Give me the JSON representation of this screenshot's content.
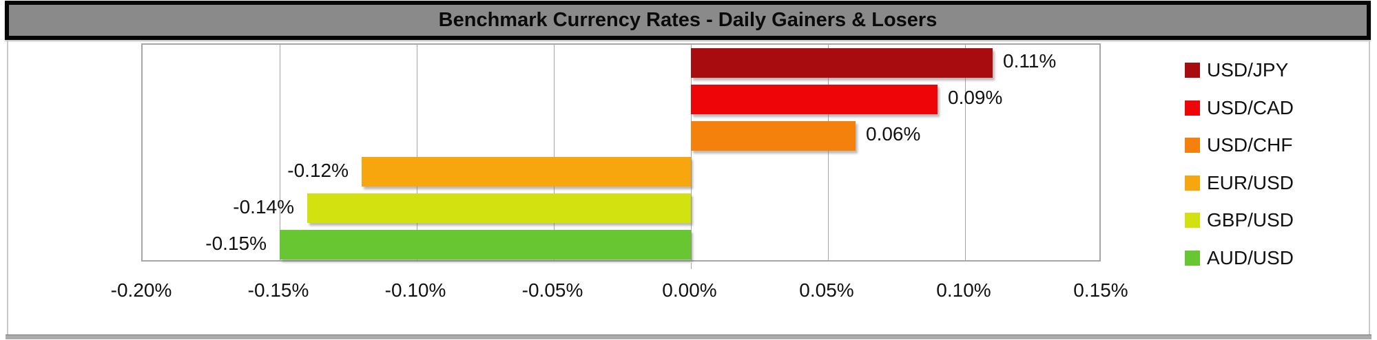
{
  "chart": {
    "title": "Benchmark Currency Rates - Daily Gainers & Losers"
  },
  "chart_data": {
    "type": "bar",
    "orientation": "horizontal",
    "title": "Benchmark Currency Rates - Daily Gainers & Losers",
    "series": [
      {
        "name": "USD/JPY",
        "value": 0.11,
        "label": "0.11%",
        "color": "#a80c0e"
      },
      {
        "name": "USD/CAD",
        "value": 0.09,
        "label": "0.09%",
        "color": "#ee0507"
      },
      {
        "name": "USD/CHF",
        "value": 0.06,
        "label": "0.06%",
        "color": "#f5810d"
      },
      {
        "name": "EUR/USD",
        "value": -0.12,
        "label": "-0.12%",
        "color": "#f7a60d"
      },
      {
        "name": "GBP/USD",
        "value": -0.14,
        "label": "-0.14%",
        "color": "#d2e211"
      },
      {
        "name": "AUD/USD",
        "value": -0.15,
        "label": "-0.15%",
        "color": "#68c633"
      }
    ],
    "x_axis": {
      "min": -0.2,
      "max": 0.15,
      "tick_step": 0.05,
      "ticks": [
        -0.2,
        -0.15,
        -0.1,
        -0.05,
        0.0,
        0.05,
        0.1,
        0.15
      ],
      "tick_labels": [
        "-0.20%",
        "-0.15%",
        "-0.10%",
        "-0.05%",
        "0.00%",
        "0.05%",
        "0.10%",
        "0.15%"
      ]
    },
    "grid": true,
    "legend_position": "right"
  },
  "style": {
    "title_bg": "#8a8a8a",
    "title_border": "#060606",
    "grid_color": "#a6a6a6",
    "text_color": "#111111",
    "background": "#ffffff"
  }
}
